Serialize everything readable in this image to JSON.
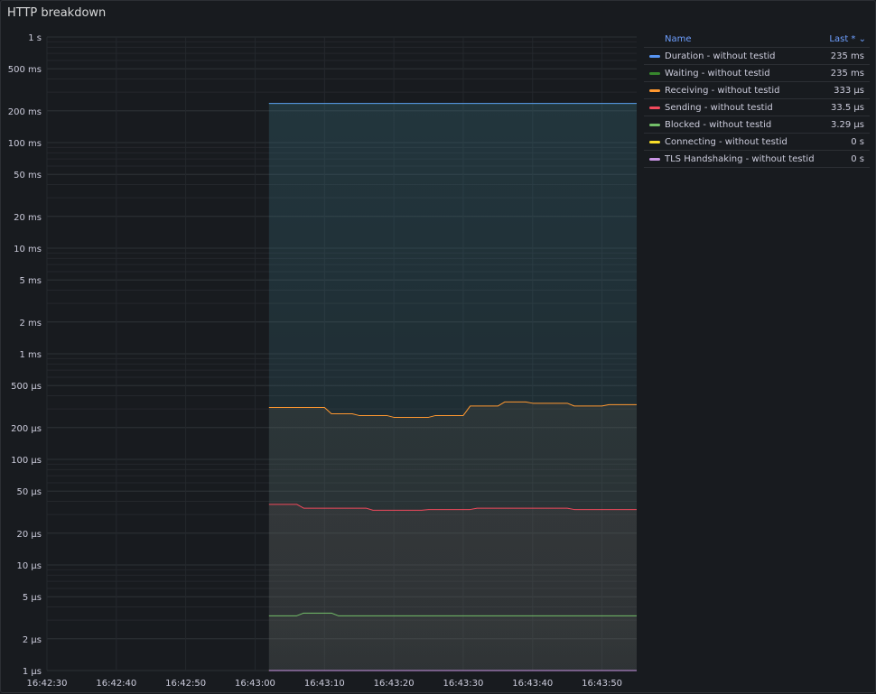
{
  "panel": {
    "title": "HTTP breakdown"
  },
  "legend": {
    "name_header": "Name",
    "value_header": "Last * ⌄",
    "items": [
      {
        "name": "Duration - without testid",
        "value": "235 ms",
        "color": "#5794f2"
      },
      {
        "name": "Waiting - without testid",
        "value": "235 ms",
        "color": "#37872d"
      },
      {
        "name": "Receiving - without testid",
        "value": "333 µs",
        "color": "#ff9830"
      },
      {
        "name": "Sending - without testid",
        "value": "33.5 µs",
        "color": "#f2495c"
      },
      {
        "name": "Blocked - without testid",
        "value": "3.29 µs",
        "color": "#73bf69"
      },
      {
        "name": "Connecting - without testid",
        "value": "0 s",
        "color": "#fade2a"
      },
      {
        "name": "TLS Handshaking - without testid",
        "value": "0 s",
        "color": "#ca95e5"
      }
    ]
  },
  "chart_data": {
    "type": "line",
    "title": "HTTP breakdown",
    "y_scale": "log",
    "ylim_seconds": [
      1e-06,
      1
    ],
    "y_ticks": [
      {
        "v": 1,
        "label": "1 s"
      },
      {
        "v": 0.5,
        "label": "500 ms"
      },
      {
        "v": 0.2,
        "label": "200 ms"
      },
      {
        "v": 0.1,
        "label": "100 ms"
      },
      {
        "v": 0.05,
        "label": "50 ms"
      },
      {
        "v": 0.02,
        "label": "20 ms"
      },
      {
        "v": 0.01,
        "label": "10 ms"
      },
      {
        "v": 0.005,
        "label": "5 ms"
      },
      {
        "v": 0.002,
        "label": "2 ms"
      },
      {
        "v": 0.001,
        "label": "1 ms"
      },
      {
        "v": 0.0005,
        "label": "500 µs"
      },
      {
        "v": 0.0002,
        "label": "200 µs"
      },
      {
        "v": 0.0001,
        "label": "100 µs"
      },
      {
        "v": 5e-05,
        "label": "50 µs"
      },
      {
        "v": 2e-05,
        "label": "20 µs"
      },
      {
        "v": 1e-05,
        "label": "10 µs"
      },
      {
        "v": 5e-06,
        "label": "5 µs"
      },
      {
        "v": 2e-06,
        "label": "2 µs"
      },
      {
        "v": 1e-06,
        "label": "1 µs"
      }
    ],
    "x_ticks": [
      "16:42:30",
      "16:42:40",
      "16:42:50",
      "16:43:00",
      "16:43:10",
      "16:43:20",
      "16:43:30",
      "16:43:40",
      "16:43:50"
    ],
    "xlim": [
      "16:42:30",
      "16:43:55"
    ],
    "grid": true,
    "legend_position": "right",
    "series": [
      {
        "name": "Waiting - without testid",
        "color": "#37872d",
        "x": [
          "16:43:02",
          "16:43:55"
        ],
        "y": [
          0.235,
          0.235
        ]
      },
      {
        "name": "Duration - without testid",
        "color": "#5794f2",
        "x": [
          "16:43:02",
          "16:43:55"
        ],
        "y": [
          0.235,
          0.235
        ]
      },
      {
        "name": "Receiving - without testid",
        "color": "#ff9830",
        "x": [
          "16:43:02",
          "16:43:06",
          "16:43:10",
          "16:43:11",
          "16:43:14",
          "16:43:15",
          "16:43:19",
          "16:43:20",
          "16:43:25",
          "16:43:26",
          "16:43:30",
          "16:43:31",
          "16:43:35",
          "16:43:36",
          "16:43:39",
          "16:43:40",
          "16:43:45",
          "16:43:46",
          "16:43:50",
          "16:43:51",
          "16:43:55"
        ],
        "y": [
          0.00031,
          0.00031,
          0.00031,
          0.00027,
          0.00027,
          0.00026,
          0.00026,
          0.00025,
          0.00025,
          0.00026,
          0.00026,
          0.00032,
          0.00032,
          0.00035,
          0.00035,
          0.00034,
          0.00034,
          0.00032,
          0.00032,
          0.00033,
          0.00033
        ]
      },
      {
        "name": "Sending - without testid",
        "color": "#f2495c",
        "x": [
          "16:43:02",
          "16:43:06",
          "16:43:07",
          "16:43:16",
          "16:43:17",
          "16:43:24",
          "16:43:25",
          "16:43:31",
          "16:43:32",
          "16:43:45",
          "16:43:46",
          "16:43:55"
        ],
        "y": [
          3.75e-05,
          3.75e-05,
          3.45e-05,
          3.45e-05,
          3.3e-05,
          3.3e-05,
          3.35e-05,
          3.35e-05,
          3.45e-05,
          3.45e-05,
          3.35e-05,
          3.35e-05
        ]
      },
      {
        "name": "Blocked - without testid",
        "color": "#73bf69",
        "x": [
          "16:43:02",
          "16:43:06",
          "16:43:07",
          "16:43:11",
          "16:43:12",
          "16:43:55"
        ],
        "y": [
          3.3e-06,
          3.3e-06,
          3.5e-06,
          3.5e-06,
          3.3e-06,
          3.3e-06
        ]
      },
      {
        "name": "Connecting - without testid",
        "color": "#fade2a",
        "x": [
          "16:43:02",
          "16:43:55"
        ],
        "y": [
          0,
          0
        ]
      },
      {
        "name": "TLS Handshaking - without testid",
        "color": "#ca95e5",
        "x": [
          "16:43:02",
          "16:43:55"
        ],
        "y": [
          0,
          0
        ]
      }
    ]
  }
}
